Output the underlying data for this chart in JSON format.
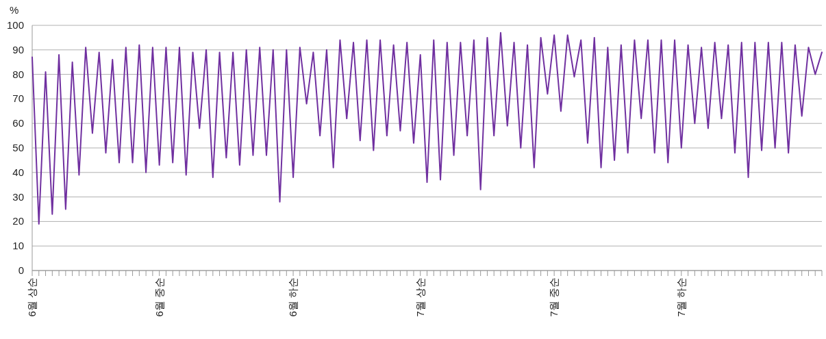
{
  "chart_data": {
    "type": "line",
    "ylabel": "%",
    "categories": [
      "6월 상순",
      null,
      null,
      null,
      null,
      null,
      null,
      null,
      null,
      null,
      null,
      null,
      null,
      null,
      null,
      null,
      null,
      null,
      null,
      "6월 중순",
      null,
      null,
      null,
      null,
      null,
      null,
      null,
      null,
      null,
      null,
      null,
      null,
      null,
      null,
      null,
      null,
      null,
      null,
      null,
      "6월 하순",
      null,
      null,
      null,
      null,
      null,
      null,
      null,
      null,
      null,
      null,
      null,
      null,
      null,
      null,
      null,
      null,
      null,
      null,
      "7월 상순",
      null,
      null,
      null,
      null,
      null,
      null,
      null,
      null,
      null,
      null,
      null,
      null,
      null,
      null,
      null,
      null,
      null,
      null,
      null,
      "7월 중순",
      null,
      null,
      null,
      null,
      null,
      null,
      null,
      null,
      null,
      null,
      null,
      null,
      null,
      null,
      null,
      null,
      null,
      null,
      "7월 하순",
      null,
      null,
      null,
      null,
      null,
      null,
      null,
      null,
      null,
      null,
      null,
      null,
      null,
      null,
      null,
      null,
      null,
      null,
      null,
      null,
      null
    ],
    "series": [
      {
        "color": "#7030a0",
        "values": [
          87,
          19,
          81,
          23,
          88,
          25,
          85,
          39,
          91,
          56,
          89,
          48,
          86,
          44,
          91,
          44,
          92,
          40,
          91,
          43,
          91,
          44,
          91,
          39,
          89,
          58,
          90,
          38,
          89,
          46,
          89,
          43,
          90,
          47,
          91,
          47,
          90,
          28,
          90,
          38,
          91,
          68,
          89,
          55,
          90,
          42,
          94,
          62,
          93,
          53,
          94,
          49,
          94,
          55,
          92,
          57,
          93,
          52,
          88,
          36,
          94,
          37,
          93,
          47,
          93,
          55,
          94,
          33,
          95,
          55,
          97,
          59,
          93,
          50,
          92,
          42,
          95,
          72,
          96,
          65,
          96,
          79,
          94,
          52,
          95,
          42,
          91,
          45,
          92,
          48,
          94,
          62,
          94,
          48,
          94,
          44,
          94,
          50,
          92,
          60,
          91,
          58,
          93,
          62,
          92,
          48,
          93,
          38,
          93,
          49,
          93,
          50,
          93,
          48,
          92,
          63,
          91,
          80,
          89
        ]
      }
    ],
    "ylim": [
      0,
      100
    ],
    "yticks": [
      0,
      10,
      20,
      30,
      40,
      50,
      60,
      70,
      80,
      90,
      100
    ],
    "grid": "y"
  }
}
